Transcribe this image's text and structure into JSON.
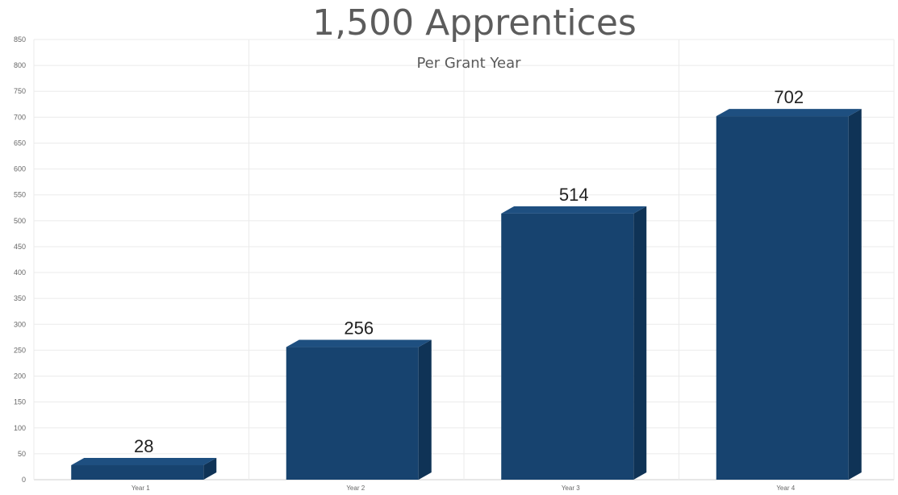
{
  "chart_data": {
    "type": "bar",
    "title": "1,500 Apprentices",
    "subtitle": "Per Grant Year",
    "xlabel": "",
    "ylabel": "",
    "categories": [
      "Year 1",
      "Year 2",
      "Year 3",
      "Year 4"
    ],
    "values": [
      28,
      256,
      514,
      702
    ],
    "data_labels": [
      "28",
      "256",
      "514",
      "702"
    ],
    "ylim": [
      0,
      850
    ],
    "yticks": [
      0,
      50,
      100,
      150,
      200,
      250,
      300,
      350,
      400,
      450,
      500,
      550,
      600,
      650,
      700,
      750,
      800,
      850
    ],
    "ytick_labels": [
      "0",
      "50",
      "100",
      "150",
      "200",
      "250",
      "300",
      "350",
      "400",
      "450",
      "500",
      "550",
      "600",
      "650",
      "700",
      "750",
      "800",
      "850"
    ],
    "grid": true,
    "legend": "none",
    "style": "3d",
    "colors": {
      "bar_front": "#17436f",
      "bar_top": "#1e4f80",
      "bar_side": "#0f3356",
      "grid": "#ebebeb",
      "axis": "#cfcfcf"
    }
  }
}
